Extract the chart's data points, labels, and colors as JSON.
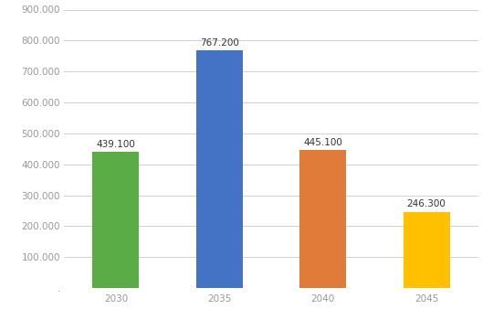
{
  "categories": [
    "2030",
    "2035",
    "2040",
    "2045"
  ],
  "values": [
    439100,
    767200,
    445100,
    246300
  ],
  "bar_colors": [
    "#5aac47",
    "#4472c4",
    "#e07b39",
    "#ffc000"
  ],
  "labels": [
    "439.100",
    "767.200",
    "445.100",
    "246.300"
  ],
  "ylim": [
    0,
    900000
  ],
  "yticks": [
    0,
    100000,
    200000,
    300000,
    400000,
    500000,
    600000,
    700000,
    800000,
    900000
  ],
  "ytick_labels": [
    ".",
    "100.000",
    "200.000",
    "300.000",
    "400.000",
    "500.000",
    "600.000",
    "700.000",
    "800.000",
    "900.000"
  ],
  "background_color": "#ffffff",
  "bar_width": 0.45,
  "label_fontsize": 7.5,
  "tick_fontsize": 7.5,
  "tick_color": "#999999",
  "grid_color": "#d0d0d0"
}
